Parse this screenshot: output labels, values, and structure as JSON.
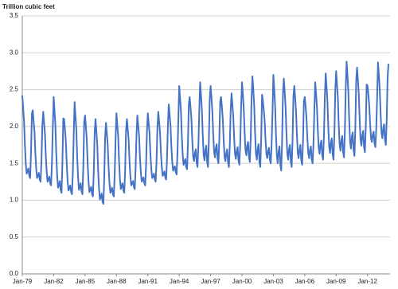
{
  "chart_data": {
    "type": "line",
    "y_label": "Trillion cubic feet",
    "color": "#4472c4",
    "grid": true,
    "ylim": [
      0,
      3.5
    ],
    "yticks": [
      {
        "value": 0,
        "label": "0.0"
      },
      0.5,
      {
        "value": 1,
        "label": "1.0"
      },
      1.5,
      {
        "value": 2,
        "label": "2.0"
      },
      2.5,
      {
        "value": 3,
        "label": "3.0"
      },
      3.5
    ],
    "categories": [
      "Jan-79",
      null,
      null,
      null,
      null,
      null,
      null,
      null,
      null,
      null,
      null,
      null,
      null,
      null,
      null,
      null,
      null,
      null,
      null,
      null,
      null,
      null,
      null,
      null,
      null,
      null,
      null,
      null,
      null,
      null,
      null,
      null,
      null,
      null,
      null,
      null,
      "Jan-82",
      null,
      null,
      null,
      null,
      null,
      null,
      null,
      null,
      null,
      null,
      null,
      null,
      null,
      null,
      null,
      null,
      null,
      null,
      null,
      null,
      null,
      null,
      null,
      null,
      null,
      null,
      null,
      null,
      null,
      null,
      null,
      null,
      null,
      null,
      null,
      "Jan-85",
      null,
      null,
      null,
      null,
      null,
      null,
      null,
      null,
      null,
      null,
      null,
      null,
      null,
      null,
      null,
      null,
      null,
      null,
      null,
      null,
      null,
      null,
      null,
      null,
      null,
      null,
      null,
      null,
      null,
      null,
      null,
      null,
      null,
      null,
      null,
      "Jan-88",
      null,
      null,
      null,
      null,
      null,
      null,
      null,
      null,
      null,
      null,
      null,
      null,
      null,
      null,
      null,
      null,
      null,
      null,
      null,
      null,
      null,
      null,
      null,
      null,
      null,
      null,
      null,
      null,
      null,
      null,
      null,
      null,
      null,
      null,
      null,
      "Jan-91",
      null,
      null,
      null,
      null,
      null,
      null,
      null,
      null,
      null,
      null,
      null,
      null,
      null,
      null,
      null,
      null,
      null,
      null,
      null,
      null,
      null,
      null,
      null,
      null,
      null,
      null,
      null,
      null,
      null,
      null,
      null,
      null,
      null,
      null,
      null,
      "Jan-94",
      null,
      null,
      null,
      null,
      null,
      null,
      null,
      null,
      null,
      null,
      null,
      null,
      null,
      null,
      null,
      null,
      null,
      null,
      null,
      null,
      null,
      null,
      null,
      null,
      null,
      null,
      null,
      null,
      null,
      null,
      null,
      null,
      null,
      null,
      null,
      "Jan-97",
      null,
      null,
      null,
      null,
      null,
      null,
      null,
      null,
      null,
      null,
      null,
      null,
      null,
      null,
      null,
      null,
      null,
      null,
      null,
      null,
      null,
      null,
      null,
      null,
      null,
      null,
      null,
      null,
      null,
      null,
      null,
      null,
      null,
      null,
      null,
      "Jan-00",
      null,
      null,
      null,
      null,
      null,
      null,
      null,
      null,
      null,
      null,
      null,
      null,
      null,
      null,
      null,
      null,
      null,
      null,
      null,
      null,
      null,
      null,
      null,
      null,
      null,
      null,
      null,
      null,
      null,
      null,
      null,
      null,
      null,
      null,
      null,
      "Jan-03",
      null,
      null,
      null,
      null,
      null,
      null,
      null,
      null,
      null,
      null,
      null,
      null,
      null,
      null,
      null,
      null,
      null,
      null,
      null,
      null,
      null,
      null,
      null,
      null,
      null,
      null,
      null,
      null,
      null,
      null,
      null,
      null,
      null,
      null,
      null,
      "Jan-06",
      null,
      null,
      null,
      null,
      null,
      null,
      null,
      null,
      null,
      null,
      null,
      null,
      null,
      null,
      null,
      null,
      null,
      null,
      null,
      null,
      null,
      null,
      null,
      null,
      null,
      null,
      null,
      null,
      null,
      null,
      null,
      null,
      null,
      null,
      null,
      "Jan-09",
      null,
      null,
      null,
      null,
      null,
      null,
      null,
      null,
      null,
      null,
      null,
      null,
      null,
      null,
      null,
      null,
      null,
      null,
      null,
      null,
      null,
      null,
      null,
      null,
      null,
      null,
      null,
      null,
      null,
      null,
      null,
      null,
      null,
      null,
      null,
      "Jan-12",
      null,
      null,
      null,
      null,
      null,
      null,
      null,
      null,
      null,
      null,
      null,
      null,
      null,
      null,
      null,
      null,
      null,
      null,
      null,
      null,
      null,
      null,
      null,
      null
    ],
    "values": [
      2.42,
      2.25,
      2.08,
      1.75,
      1.5,
      1.36,
      1.39,
      1.43,
      1.33,
      1.3,
      1.64,
      2.17,
      2.22,
      2.07,
      1.93,
      1.64,
      1.42,
      1.3,
      1.33,
      1.37,
      1.28,
      1.25,
      1.54,
      2.01,
      2.2,
      2.05,
      1.9,
      1.6,
      1.38,
      1.25,
      1.28,
      1.32,
      1.23,
      1.2,
      1.5,
      1.98,
      2.4,
      2.21,
      2.01,
      1.62,
      1.33,
      1.17,
      1.2,
      1.26,
      1.14,
      1.1,
      1.49,
      2.11,
      2.1,
      1.95,
      1.79,
      1.49,
      1.26,
      1.13,
      1.16,
      1.2,
      1.11,
      1.08,
      1.39,
      1.88,
      2.33,
      2.14,
      1.96,
      1.58,
      1.31,
      1.14,
      1.18,
      1.23,
      1.12,
      1.08,
      1.46,
      2.06,
      2.15,
      1.99,
      1.82,
      1.49,
      1.25,
      1.11,
      1.14,
      1.18,
      1.08,
      1.05,
      1.38,
      1.91,
      2.1,
      1.93,
      1.76,
      1.41,
      1.16,
      1.01,
      1.04,
      1.09,
      0.98,
      0.95,
      1.3,
      1.85,
      2.05,
      1.9,
      1.75,
      1.45,
      1.23,
      1.1,
      1.13,
      1.17,
      1.08,
      1.05,
      1.35,
      1.83,
      2.18,
      2.02,
      1.86,
      1.53,
      1.29,
      1.15,
      1.19,
      1.23,
      1.13,
      1.1,
      1.42,
      1.94,
      2.1,
      1.96,
      1.82,
      1.53,
      1.32,
      1.2,
      1.23,
      1.26,
      1.18,
      1.15,
      1.44,
      1.89,
      2.15,
      2.01,
      1.87,
      1.58,
      1.37,
      1.25,
      1.28,
      1.31,
      1.23,
      1.2,
      1.49,
      1.94,
      2.18,
      2.04,
      1.9,
      1.62,
      1.42,
      1.3,
      1.32,
      1.36,
      1.28,
      1.25,
      1.53,
      1.98,
      2.2,
      2.06,
      1.92,
      1.65,
      1.45,
      1.33,
      1.35,
      1.39,
      1.31,
      1.28,
      1.56,
      2.0,
      2.3,
      2.16,
      2.02,
      1.73,
      1.52,
      1.4,
      1.43,
      1.46,
      1.38,
      1.35,
      1.64,
      2.09,
      2.55,
      2.38,
      2.21,
      1.87,
      1.62,
      1.48,
      1.51,
      1.56,
      1.45,
      1.42,
      1.76,
      2.3,
      2.4,
      2.26,
      2.1,
      1.81,
      1.59,
      1.53,
      1.64,
      1.69,
      1.51,
      1.45,
      1.74,
      2.21,
      2.6,
      2.43,
      2.23,
      1.89,
      1.62,
      1.54,
      1.68,
      1.74,
      1.52,
      1.45,
      1.8,
      2.37,
      2.55,
      2.39,
      2.21,
      1.9,
      1.66,
      1.58,
      1.71,
      1.76,
      1.56,
      1.5,
      1.82,
      2.34,
      2.4,
      2.26,
      2.1,
      1.81,
      1.59,
      1.53,
      1.64,
      1.69,
      1.51,
      1.45,
      1.74,
      2.21,
      2.45,
      2.3,
      2.14,
      1.85,
      1.63,
      1.56,
      1.67,
      1.72,
      1.54,
      1.48,
      1.77,
      2.26,
      2.6,
      2.44,
      2.25,
      1.93,
      1.68,
      1.61,
      1.74,
      1.79,
      1.58,
      1.52,
      1.84,
      2.38,
      2.68,
      2.5,
      2.29,
      1.92,
      1.63,
      1.55,
      1.7,
      1.76,
      1.52,
      1.45,
      1.82,
      2.43,
      2.35,
      2.22,
      2.08,
      1.82,
      1.63,
      1.57,
      1.67,
      1.71,
      1.55,
      1.5,
      1.76,
      2.18,
      2.7,
      2.51,
      2.28,
      1.89,
      1.6,
      1.5,
      1.66,
      1.73,
      1.48,
      1.4,
      1.79,
      2.44,
      2.65,
      2.47,
      2.27,
      1.91,
      1.63,
      1.55,
      1.69,
      1.75,
      1.52,
      1.45,
      1.81,
      2.41,
      2.55,
      2.39,
      2.21,
      1.89,
      1.64,
      1.57,
      1.69,
      1.75,
      1.54,
      1.48,
      1.8,
      2.34,
      2.4,
      2.27,
      2.11,
      1.84,
      1.64,
      1.57,
      1.68,
      1.73,
      1.55,
      1.5,
      1.77,
      2.22,
      2.6,
      2.44,
      2.26,
      1.95,
      1.71,
      1.63,
      1.76,
      1.81,
      1.61,
      1.55,
      1.87,
      2.39,
      2.72,
      2.54,
      2.35,
      1.99,
      1.73,
      1.64,
      1.78,
      1.84,
      1.62,
      1.55,
      1.9,
      2.49,
      2.75,
      2.57,
      2.38,
      2.02,
      1.76,
      1.67,
      1.81,
      1.87,
      1.65,
      1.58,
      1.93,
      2.52,
      2.88,
      2.69,
      2.47,
      2.09,
      1.79,
      1.7,
      1.86,
      1.92,
      1.68,
      1.6,
      1.98,
      2.62,
      2.8,
      2.63,
      2.43,
      2.09,
      1.82,
      1.74,
      1.88,
      1.94,
      1.72,
      1.65,
      2.0,
      2.57,
      2.55,
      2.43,
      2.28,
      2.04,
      1.84,
      1.79,
      1.89,
      1.93,
      1.77,
      1.72,
      1.97,
      2.38,
      2.87,
      2.7,
      2.51,
      2.18,
      1.92,
      1.84,
      1.97,
      2.03,
      1.82,
      1.75,
      2.09,
      2.65,
      2.85
    ]
  }
}
